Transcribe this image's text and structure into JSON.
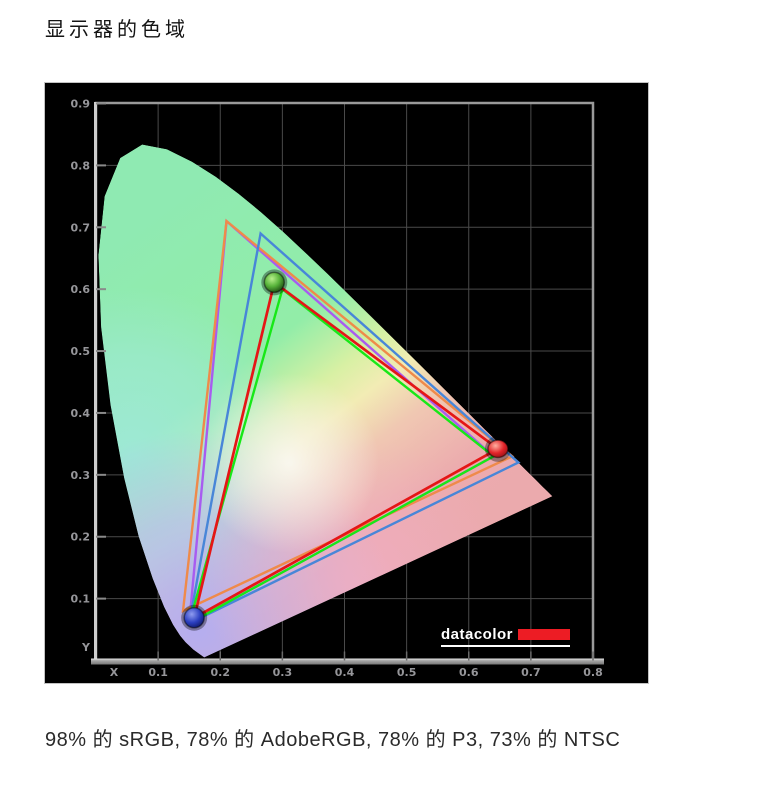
{
  "page": {
    "title": "显示器的色域",
    "caption": "98% 的 sRGB, 78% 的 AdobeRGB, 78% 的 P3, 73% 的 NTSC"
  },
  "chart_data": {
    "type": "chromaticity-gamut-diagram",
    "title": "显示器的色域",
    "caption": "98% 的 sRGB, 78% 的 AdobeRGB, 78% 的 P3, 73% 的 NTSC",
    "gamut_coverage": [
      {
        "space": "sRGB",
        "coverage_pct": 98
      },
      {
        "space": "AdobeRGB",
        "coverage_pct": 78
      },
      {
        "space": "P3",
        "coverage_pct": 78
      },
      {
        "space": "NTSC",
        "coverage_pct": 73
      }
    ],
    "axes": {
      "x_label": "X",
      "y_label": "Y",
      "x_range": [
        0,
        0.8
      ],
      "y_range": [
        0,
        0.9
      ],
      "x_ticks": [
        0.1,
        0.2,
        0.3,
        0.4,
        0.5,
        0.6,
        0.7,
        0.8
      ],
      "y_ticks": [
        0.1,
        0.2,
        0.3,
        0.4,
        0.5,
        0.6,
        0.7,
        0.8,
        0.9
      ],
      "grid": true,
      "background": "#000000",
      "grid_color": "#4a4a4a",
      "tick_label_color": "#96969a"
    },
    "series": [
      {
        "id": "adobergb",
        "name": "AdobeRGB reference gamut",
        "color": "#a85cf0",
        "points": [
          [
            0.21,
            0.71
          ],
          [
            0.64,
            0.33
          ],
          [
            0.15,
            0.06
          ]
        ]
      },
      {
        "id": "ntsc",
        "name": "NTSC reference gamut",
        "color": "#ef8a4a",
        "points": [
          [
            0.21,
            0.71
          ],
          [
            0.67,
            0.33
          ],
          [
            0.14,
            0.08
          ]
        ]
      },
      {
        "id": "p3",
        "name": "P3 reference gamut",
        "color": "#4886d8",
        "points": [
          [
            0.265,
            0.69
          ],
          [
            0.68,
            0.32
          ],
          [
            0.15,
            0.06
          ]
        ]
      },
      {
        "id": "srgb",
        "name": "sRGB reference gamut",
        "color": "#17e817",
        "points": [
          [
            0.3,
            0.6
          ],
          [
            0.64,
            0.33
          ],
          [
            0.15,
            0.06
          ]
        ]
      },
      {
        "id": "display",
        "name": "measured display gamut",
        "color": "#e51616",
        "points": [
          [
            0.287,
            0.611
          ],
          [
            0.647,
            0.342
          ],
          [
            0.158,
            0.069
          ]
        ],
        "markers": [
          "green-sphere",
          "red-sphere",
          "blue-sphere"
        ]
      }
    ],
    "spectral_locus": [
      [
        0.1741,
        0.005
      ],
      [
        0.1566,
        0.0177
      ],
      [
        0.144,
        0.0297
      ],
      [
        0.1355,
        0.0399
      ],
      [
        0.1241,
        0.0578
      ],
      [
        0.1096,
        0.0868
      ],
      [
        0.0913,
        0.1327
      ],
      [
        0.0687,
        0.2007
      ],
      [
        0.0454,
        0.295
      ],
      [
        0.0235,
        0.4127
      ],
      [
        0.0082,
        0.5384
      ],
      [
        0.0039,
        0.6548
      ],
      [
        0.0139,
        0.7502
      ],
      [
        0.0389,
        0.812
      ],
      [
        0.0743,
        0.8338
      ],
      [
        0.1142,
        0.8262
      ],
      [
        0.1547,
        0.8059
      ],
      [
        0.1929,
        0.7816
      ],
      [
        0.2296,
        0.7543
      ],
      [
        0.2658,
        0.7243
      ],
      [
        0.3016,
        0.6923
      ],
      [
        0.3373,
        0.6589
      ],
      [
        0.3731,
        0.6245
      ],
      [
        0.4087,
        0.5896
      ],
      [
        0.4441,
        0.5547
      ],
      [
        0.4788,
        0.5202
      ],
      [
        0.5125,
        0.4866
      ],
      [
        0.5448,
        0.4544
      ],
      [
        0.5752,
        0.4242
      ],
      [
        0.6029,
        0.3965
      ],
      [
        0.627,
        0.3725
      ],
      [
        0.6482,
        0.3514
      ],
      [
        0.6658,
        0.334
      ],
      [
        0.6801,
        0.3197
      ],
      [
        0.6915,
        0.3083
      ],
      [
        0.7079,
        0.292
      ],
      [
        0.719,
        0.2809
      ],
      [
        0.726,
        0.274
      ],
      [
        0.7347,
        0.2653
      ]
    ],
    "logo": {
      "text": "datacolor",
      "bar_color": "#ed1c24"
    }
  }
}
